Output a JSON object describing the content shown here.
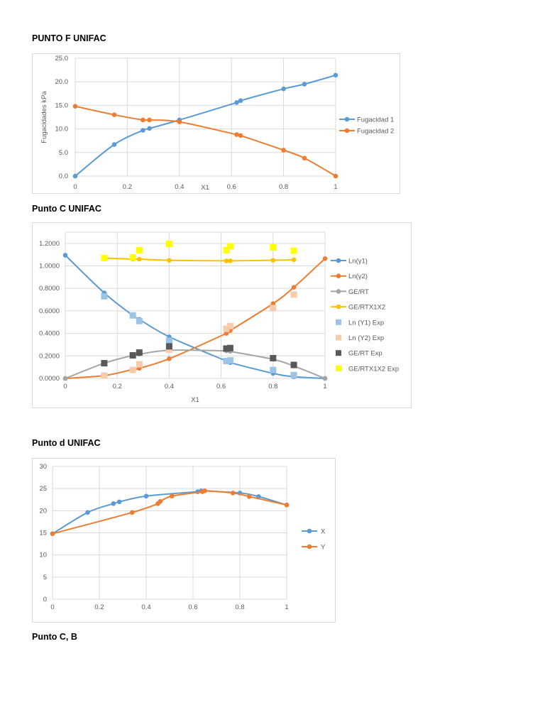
{
  "headings": [
    "PUNTO F UNIFAC",
    "Punto C UNIFAC",
    "Punto d UNIFAC",
    "Punto C, B"
  ],
  "chart_data": [
    {
      "type": "line",
      "title": "",
      "xlabel": "X1",
      "ylabel": "Fugacidades kPa",
      "xlim": [
        0,
        1
      ],
      "ylim": [
        0,
        25
      ],
      "xticks": [
        "0",
        "0.2",
        "0.4",
        "0.6",
        "0.8",
        "1"
      ],
      "yticks": [
        "0.0",
        "5.0",
        "10.0",
        "15.0",
        "20.0",
        "25.0"
      ],
      "grid": true,
      "legend": "right",
      "x": [
        0,
        0.15,
        0.26,
        0.285,
        0.4,
        0.62,
        0.635,
        0.8,
        0.88,
        1
      ],
      "series": [
        {
          "name": "Fugacidad 1",
          "color": "#5b9bd5",
          "marker": "circle",
          "line": true,
          "values": [
            0,
            6.7,
            9.7,
            10.1,
            11.9,
            15.6,
            16.0,
            18.5,
            19.5,
            21.4
          ]
        },
        {
          "name": "Fugacidad 2",
          "color": "#ed7d31",
          "marker": "circle",
          "line": true,
          "values": [
            14.8,
            13.0,
            11.9,
            11.9,
            11.5,
            8.8,
            8.6,
            5.5,
            3.8,
            0
          ]
        }
      ]
    },
    {
      "type": "line",
      "title": "",
      "xlabel": "X1",
      "ylabel": "",
      "xlim": [
        0,
        1
      ],
      "ylim": [
        0,
        1.3
      ],
      "xticks": [
        "0",
        "0.2",
        "0.4",
        "0.6",
        "0.8",
        "1"
      ],
      "yticks": [
        "0.0000",
        "0.2000",
        "0.4000",
        "0.6000",
        "0.8000",
        "1.0000",
        "1.2000"
      ],
      "grid": true,
      "legend": "right",
      "series": [
        {
          "name": "Ln(γ1)",
          "color": "#5b9bd5",
          "marker": "circle",
          "line": true,
          "x": [
            0,
            0.15,
            0.26,
            0.285,
            0.4,
            0.62,
            0.635,
            0.8,
            0.88,
            1
          ],
          "values": [
            1.095,
            0.76,
            0.56,
            0.525,
            0.37,
            0.155,
            0.14,
            0.045,
            0.015,
            0
          ]
        },
        {
          "name": "Ln(γ2)",
          "color": "#ed7d31",
          "marker": "circle",
          "line": true,
          "x": [
            0,
            0.15,
            0.26,
            0.285,
            0.4,
            0.62,
            0.635,
            0.8,
            0.88,
            1
          ],
          "values": [
            0,
            0.025,
            0.08,
            0.09,
            0.175,
            0.4,
            0.425,
            0.665,
            0.81,
            1.065
          ]
        },
        {
          "name": "GE/RT",
          "color": "#a5a5a5",
          "marker": "circle",
          "line": true,
          "x": [
            0,
            0.15,
            0.26,
            0.285,
            0.4,
            0.62,
            0.635,
            0.8,
            0.88,
            1
          ],
          "values": [
            0,
            0.135,
            0.205,
            0.215,
            0.25,
            0.245,
            0.24,
            0.17,
            0.11,
            0
          ]
        },
        {
          "name": "GE/RTX1X2",
          "color": "#ffc000",
          "marker": "circle",
          "line": true,
          "x": [
            0.15,
            0.26,
            0.285,
            0.4,
            0.62,
            0.635,
            0.8,
            0.88
          ],
          "values": [
            1.07,
            1.06,
            1.06,
            1.05,
            1.045,
            1.045,
            1.05,
            1.055
          ]
        },
        {
          "name": "Ln (Y1) Exp",
          "color": "#9dc3e6",
          "marker": "square",
          "line": false,
          "x": [
            0.15,
            0.26,
            0.285,
            0.4,
            0.62,
            0.635,
            0.8,
            0.88
          ],
          "values": [
            0.73,
            0.56,
            0.51,
            0.335,
            0.155,
            0.16,
            0.075,
            0.03
          ]
        },
        {
          "name": "Ln (Y2) Exp",
          "color": "#f8cbad",
          "marker": "square",
          "line": false,
          "x": [
            0.15,
            0.26,
            0.285,
            0.4,
            0.62,
            0.635,
            0.8,
            0.88
          ],
          "values": [
            0.025,
            0.075,
            0.125,
            0.255,
            0.44,
            0.465,
            0.625,
            0.745
          ]
        },
        {
          "name": "GE/RT Exp",
          "color": "#595959",
          "marker": "square",
          "line": false,
          "x": [
            0.15,
            0.26,
            0.285,
            0.4,
            0.62,
            0.635,
            0.8,
            0.88
          ],
          "values": [
            0.135,
            0.205,
            0.23,
            0.285,
            0.265,
            0.27,
            0.18,
            0.12
          ]
        },
        {
          "name": "GE/RTX1X2 Exp",
          "color": "#ffff00",
          "marker": "square",
          "line": false,
          "x": [
            0.15,
            0.26,
            0.285,
            0.4,
            0.62,
            0.635,
            0.8,
            0.88
          ],
          "values": [
            1.07,
            1.075,
            1.14,
            1.195,
            1.14,
            1.175,
            1.165,
            1.135
          ]
        }
      ]
    },
    {
      "type": "line",
      "title": "",
      "xlabel": "",
      "ylabel": "",
      "xlim": [
        0,
        1
      ],
      "ylim": [
        0,
        30
      ],
      "xticks": [
        "0",
        "0.2",
        "0.4",
        "0.6",
        "0.8",
        "1"
      ],
      "yticks": [
        "0",
        "5",
        "10",
        "15",
        "20",
        "25",
        "30"
      ],
      "grid": true,
      "legend": "right",
      "series": [
        {
          "name": "X",
          "color": "#5b9bd5",
          "marker": "circle",
          "line": true,
          "x": [
            0,
            0.15,
            0.26,
            0.285,
            0.4,
            0.62,
            0.635,
            0.8,
            0.88,
            1
          ],
          "values": [
            14.8,
            19.6,
            21.6,
            22.0,
            23.3,
            24.3,
            24.5,
            24.0,
            23.2,
            21.3
          ]
        },
        {
          "name": "Y",
          "color": "#ed7d31",
          "marker": "circle",
          "line": true,
          "x": [
            0,
            0.34,
            0.45,
            0.46,
            0.51,
            0.64,
            0.65,
            0.77,
            0.84,
            1
          ],
          "values": [
            14.8,
            19.6,
            21.6,
            22.1,
            23.3,
            24.3,
            24.5,
            24.0,
            23.2,
            21.3
          ]
        }
      ]
    }
  ]
}
